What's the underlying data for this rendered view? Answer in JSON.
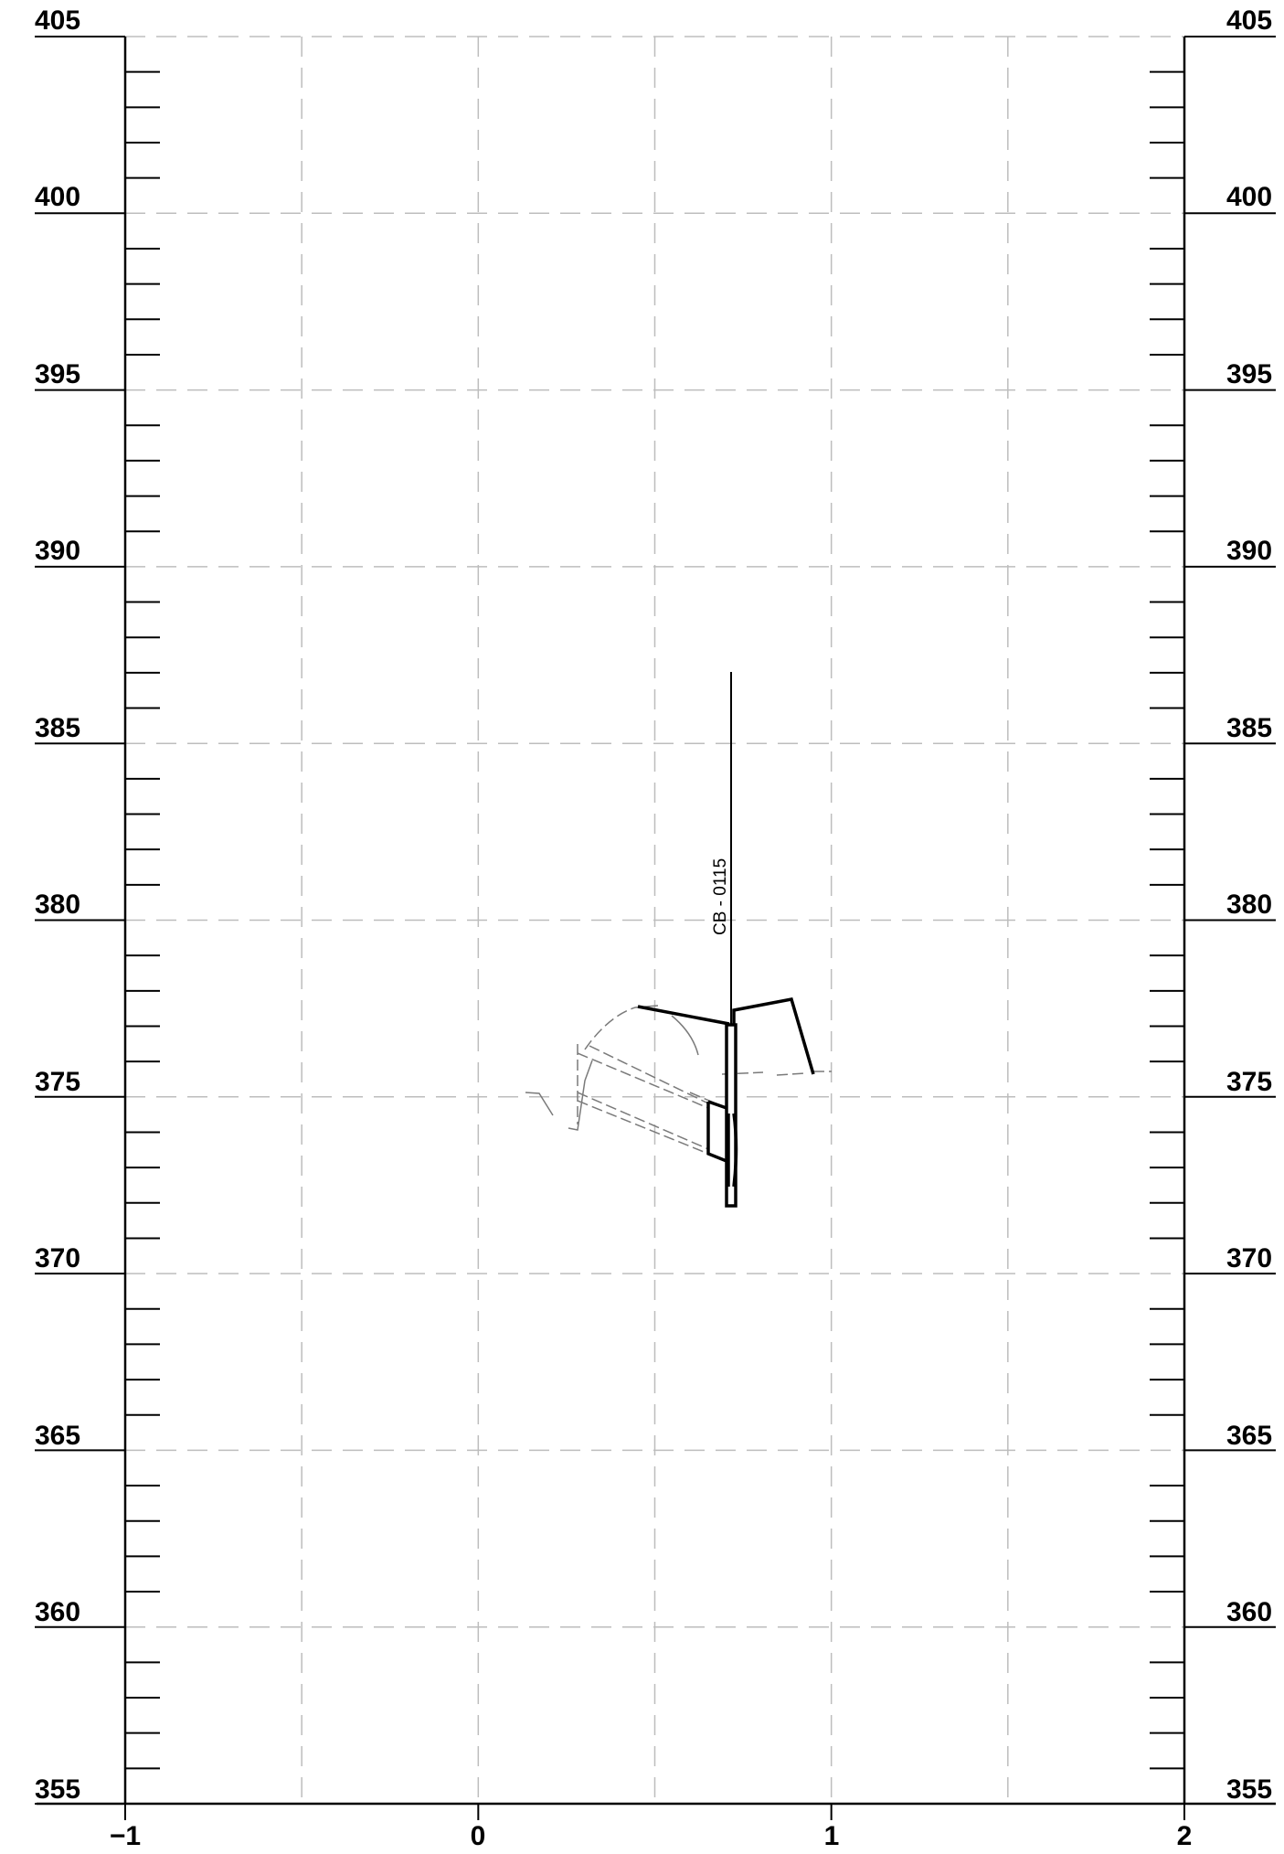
{
  "drawing": {
    "elevations": [
      "405",
      "400",
      "395",
      "390",
      "385",
      "380",
      "375",
      "370",
      "365",
      "360",
      "355"
    ],
    "offsets": [
      "−1",
      "0",
      "1",
      "2"
    ],
    "borehole": {
      "label": "CB - 0115"
    }
  }
}
